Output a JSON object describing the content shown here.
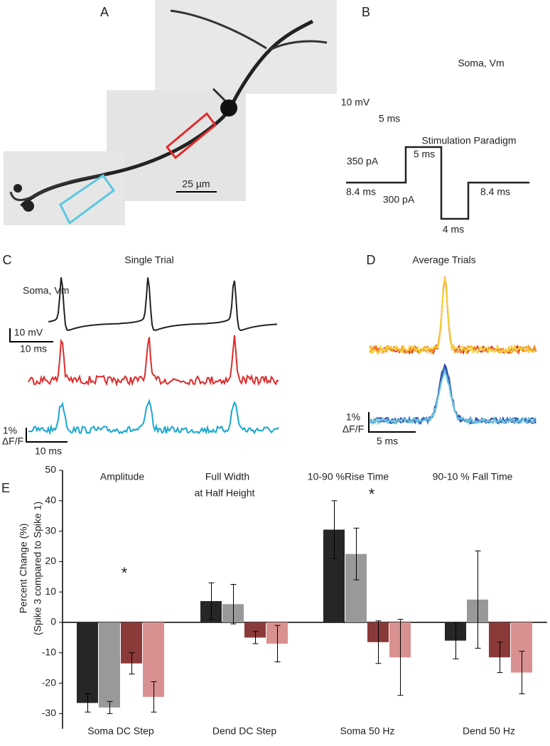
{
  "panels": {
    "A": {
      "letter": "A",
      "scale": "25 µm"
    },
    "B": {
      "letter": "B",
      "trace_label": "Soma, Vm",
      "scale_v": "10 mV",
      "scale_t": "5 ms",
      "paradigm_title": "Stimulation Paradigm",
      "step_pos": "350 pA",
      "step_pos_dur": "5 ms",
      "pre_dur": "8.4 ms",
      "step_neg": "300 pA",
      "step_neg_dur": "4 ms",
      "post_dur": "8.4 ms"
    },
    "C": {
      "letter": "C",
      "title": "Single Trial",
      "trace_label": "Soma, Vm",
      "scale_v": "10 mV",
      "scale_t": "10 ms",
      "scale_f": "1%",
      "scale_f_unit": "ΔF/F",
      "scale_t2": "10 ms"
    },
    "D": {
      "letter": "D",
      "title": "Average Trials",
      "scale_f": "1%",
      "scale_f_unit": "ΔF/F",
      "scale_t": "5 ms"
    },
    "E": {
      "letter": "E"
    }
  },
  "chart_data": {
    "type": "bar",
    "ylabel": "Percent Change (%)",
    "ylabel2": "(Spike 3 compared to Spike 1)",
    "categories": [
      "Soma DC Step",
      "Dend DC Step",
      "Soma 50 Hz",
      "Dend 50 Hz"
    ],
    "annotations": [
      "Amplitude",
      "Full Width",
      "at Half Height",
      "10-90 %Rise Time",
      "90-10 % Fall Time",
      "*",
      "*"
    ],
    "series": [
      {
        "color": "#262626",
        "values": [
          -26.5,
          7,
          30.5,
          -6
        ],
        "errors": [
          3,
          6,
          9.5,
          6
        ]
      },
      {
        "color": "#999999",
        "values": [
          -28,
          6,
          22.5,
          7.5
        ],
        "errors": [
          2,
          6.5,
          8.5,
          16
        ]
      },
      {
        "color": "#8b3a3a",
        "values": [
          -13.5,
          -5,
          -6.5,
          -11.5
        ],
        "errors": [
          3.5,
          2,
          7,
          5
        ]
      },
      {
        "color": "#d99090",
        "values": [
          -24.5,
          -7,
          -11.5,
          -16.5
        ],
        "errors": [
          5,
          6,
          12.5,
          7
        ]
      }
    ],
    "ylim": [
      -35,
      50
    ],
    "yticks": [
      -30,
      -20,
      -10,
      0,
      10,
      20,
      30,
      40,
      50
    ]
  }
}
